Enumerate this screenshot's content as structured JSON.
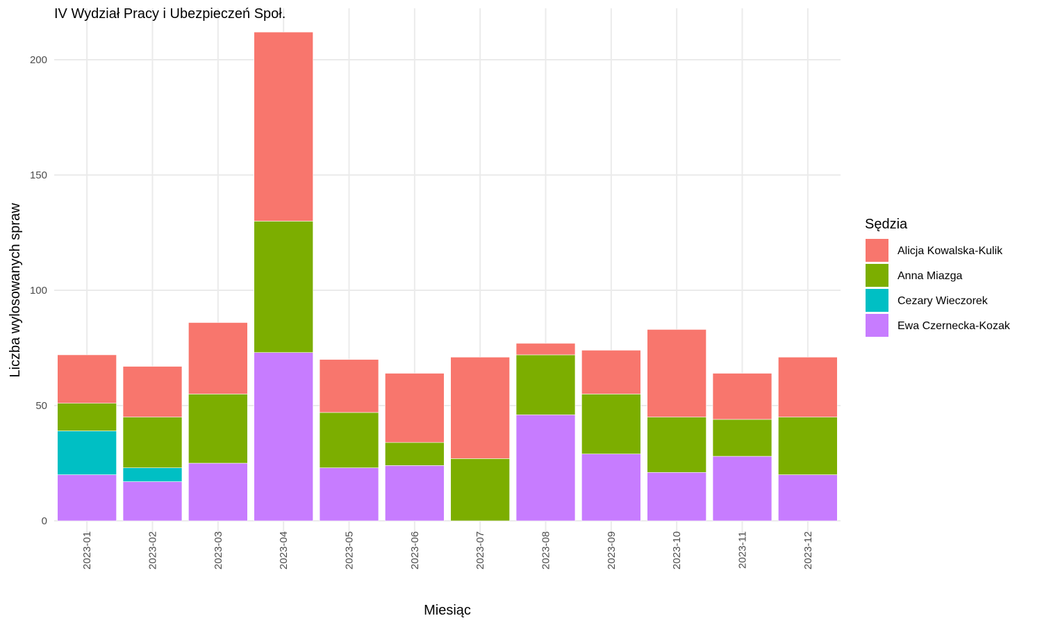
{
  "chart_data": {
    "type": "bar",
    "stacked": true,
    "title": "IV Wydział Pracy i Ubezpieczeń Społ.",
    "xlabel": "Miesiąc",
    "ylabel": "Liczba wylosowanych spraw",
    "ylim": [
      -8,
      222
    ],
    "yticks": [
      0,
      50,
      100,
      150,
      200
    ],
    "grid": true,
    "legend_title": "Sędzia",
    "legend_position": "right",
    "categories": [
      "2023-01",
      "2023-02",
      "2023-03",
      "2023-04",
      "2023-05",
      "2023-06",
      "2023-07",
      "2023-08",
      "2023-09",
      "2023-10",
      "2023-11",
      "2023-12"
    ],
    "series": [
      {
        "name": "Ewa Czernecka-Kozak",
        "color": "#C77CFF",
        "values": [
          20,
          17,
          25,
          73,
          23,
          24,
          0,
          46,
          29,
          21,
          28,
          20
        ]
      },
      {
        "name": "Cezary Wieczorek",
        "color": "#00BFC4",
        "values": [
          19,
          6,
          0,
          0,
          0,
          0,
          0,
          0,
          0,
          0,
          0,
          0
        ]
      },
      {
        "name": "Anna Miazga",
        "color": "#7CAE00",
        "values": [
          12,
          22,
          30,
          57,
          24,
          10,
          27,
          26,
          26,
          24,
          16,
          25
        ]
      },
      {
        "name": "Alicja Kowalska-Kulik",
        "color": "#F8766D",
        "values": [
          21,
          22,
          31,
          82,
          23,
          30,
          44,
          5,
          19,
          38,
          20,
          26
        ]
      }
    ],
    "legend_order": [
      "Alicja Kowalska-Kulik",
      "Anna Miazga",
      "Cezary Wieczorek",
      "Ewa Czernecka-Kozak"
    ]
  }
}
